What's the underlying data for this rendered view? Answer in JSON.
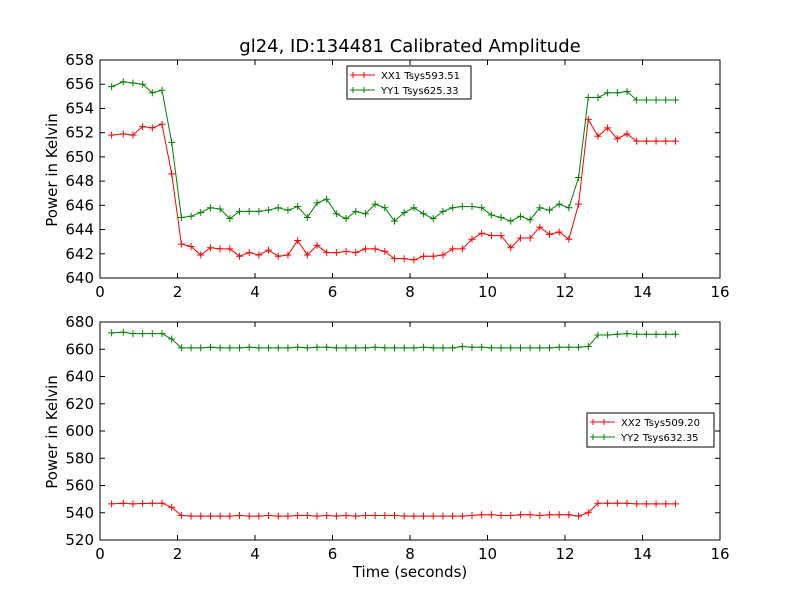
{
  "chart_data": [
    {
      "type": "line",
      "title": "gl24, ID:134481 Calibrated Amplitude",
      "xlabel": "",
      "ylabel": "Power in Kelvin",
      "xlim": [
        0,
        16
      ],
      "ylim": [
        640,
        658
      ],
      "xticks": [
        0,
        2,
        4,
        6,
        8,
        10,
        12,
        14,
        16
      ],
      "yticks": [
        640,
        642,
        644,
        646,
        648,
        650,
        652,
        654,
        656,
        658
      ],
      "legend": "top-center",
      "grid": false,
      "x": [
        0.3,
        0.6,
        0.85,
        1.1,
        1.35,
        1.6,
        1.85,
        2.1,
        2.35,
        2.6,
        2.85,
        3.1,
        3.35,
        3.6,
        3.85,
        4.1,
        4.35,
        4.6,
        4.85,
        5.1,
        5.35,
        5.6,
        5.85,
        6.1,
        6.35,
        6.6,
        6.85,
        7.1,
        7.35,
        7.6,
        7.85,
        8.1,
        8.35,
        8.6,
        8.85,
        9.1,
        9.35,
        9.6,
        9.85,
        10.1,
        10.35,
        10.6,
        10.85,
        11.1,
        11.35,
        11.6,
        11.85,
        12.1,
        12.35,
        12.6,
        12.85,
        13.1,
        13.35,
        13.6,
        13.85,
        14.1,
        14.35,
        14.6,
        14.85
      ],
      "series": [
        {
          "name": "XX1 Tsys593.51",
          "color": "#ff0000",
          "values": [
            651.8,
            651.9,
            651.8,
            652.5,
            652.4,
            652.7,
            648.6,
            642.8,
            642.6,
            641.9,
            642.5,
            642.4,
            642.4,
            641.8,
            642.1,
            641.9,
            642.3,
            641.8,
            641.9,
            643.1,
            641.9,
            642.7,
            642.1,
            642.1,
            642.2,
            642.1,
            642.4,
            642.4,
            642.2,
            641.6,
            641.6,
            641.5,
            641.8,
            641.8,
            641.9,
            642.4,
            642.4,
            643.2,
            643.7,
            643.5,
            643.5,
            642.5,
            643.3,
            643.3,
            644.2,
            643.6,
            643.8,
            643.2,
            646.1,
            653.1,
            651.7,
            652.4,
            651.5,
            651.9,
            651.3,
            651.3,
            651.3,
            651.3,
            651.3
          ]
        },
        {
          "name": "YY1 Tsys625.33",
          "color": "#008000",
          "values": [
            655.8,
            656.2,
            656.1,
            656.0,
            655.3,
            655.5,
            651.2,
            645.0,
            645.1,
            645.4,
            645.8,
            645.7,
            644.9,
            645.5,
            645.5,
            645.5,
            645.6,
            645.8,
            645.6,
            645.9,
            645.0,
            646.2,
            646.5,
            645.3,
            644.9,
            645.5,
            645.3,
            646.1,
            645.8,
            644.7,
            645.4,
            645.8,
            645.3,
            644.9,
            645.5,
            645.8,
            645.9,
            645.9,
            645.8,
            645.2,
            645.0,
            644.7,
            645.1,
            644.8,
            645.8,
            645.6,
            646.1,
            645.8,
            648.3,
            654.9,
            654.9,
            655.3,
            655.3,
            655.4,
            654.7,
            654.7,
            654.7,
            654.7,
            654.7
          ]
        }
      ]
    },
    {
      "type": "line",
      "title": "",
      "xlabel": "Time (seconds)",
      "ylabel": "Power in Kelvin",
      "xlim": [
        0,
        16
      ],
      "ylim": [
        520,
        680
      ],
      "xticks": [
        0,
        2,
        4,
        6,
        8,
        10,
        12,
        14,
        16
      ],
      "yticks": [
        520,
        540,
        560,
        580,
        600,
        620,
        640,
        660,
        680
      ],
      "legend": "center-right",
      "grid": false,
      "x": [
        0.3,
        0.6,
        0.85,
        1.1,
        1.35,
        1.6,
        1.85,
        2.1,
        2.35,
        2.6,
        2.85,
        3.1,
        3.35,
        3.6,
        3.85,
        4.1,
        4.35,
        4.6,
        4.85,
        5.1,
        5.35,
        5.6,
        5.85,
        6.1,
        6.35,
        6.6,
        6.85,
        7.1,
        7.35,
        7.6,
        7.85,
        8.1,
        8.35,
        8.6,
        8.85,
        9.1,
        9.35,
        9.6,
        9.85,
        10.1,
        10.35,
        10.6,
        10.85,
        11.1,
        11.35,
        11.6,
        11.85,
        12.1,
        12.35,
        12.6,
        12.85,
        13.1,
        13.35,
        13.6,
        13.85,
        14.1,
        14.35,
        14.6,
        14.85
      ],
      "series": [
        {
          "name": "XX2 Tsys509.20",
          "color": "#ff0000",
          "values": [
            546.5,
            547.0,
            546.5,
            546.8,
            547.0,
            547.0,
            544.0,
            538.0,
            537.5,
            537.5,
            537.5,
            537.5,
            537.5,
            538.0,
            537.5,
            537.5,
            538.0,
            537.5,
            537.5,
            538.0,
            538.0,
            537.5,
            538.0,
            537.5,
            538.0,
            537.5,
            538.0,
            538.0,
            538.0,
            538.0,
            537.5,
            537.5,
            537.5,
            537.5,
            537.5,
            537.5,
            537.5,
            538.0,
            538.5,
            538.5,
            538.0,
            538.0,
            538.5,
            538.5,
            538.0,
            538.5,
            538.5,
            538.5,
            537.5,
            540.0,
            547.0,
            547.0,
            547.0,
            547.0,
            546.5,
            546.5,
            546.5,
            546.5,
            546.5
          ]
        },
        {
          "name": "YY2 Tsys632.35",
          "color": "#008000",
          "values": [
            672.0,
            672.5,
            671.5,
            671.5,
            671.5,
            671.5,
            667.5,
            661.0,
            661.0,
            661.0,
            661.5,
            661.0,
            661.0,
            661.0,
            661.5,
            661.0,
            661.0,
            661.0,
            661.0,
            661.5,
            661.0,
            661.5,
            661.5,
            661.0,
            661.0,
            661.0,
            661.0,
            661.5,
            661.0,
            661.0,
            661.0,
            661.0,
            661.5,
            661.0,
            661.0,
            661.0,
            662.0,
            661.5,
            661.5,
            661.0,
            661.0,
            661.0,
            661.0,
            661.0,
            661.0,
            661.0,
            661.5,
            661.5,
            661.5,
            662.0,
            670.5,
            670.5,
            671.0,
            671.5,
            671.0,
            671.0,
            671.0,
            671.0,
            671.0
          ]
        }
      ]
    }
  ]
}
